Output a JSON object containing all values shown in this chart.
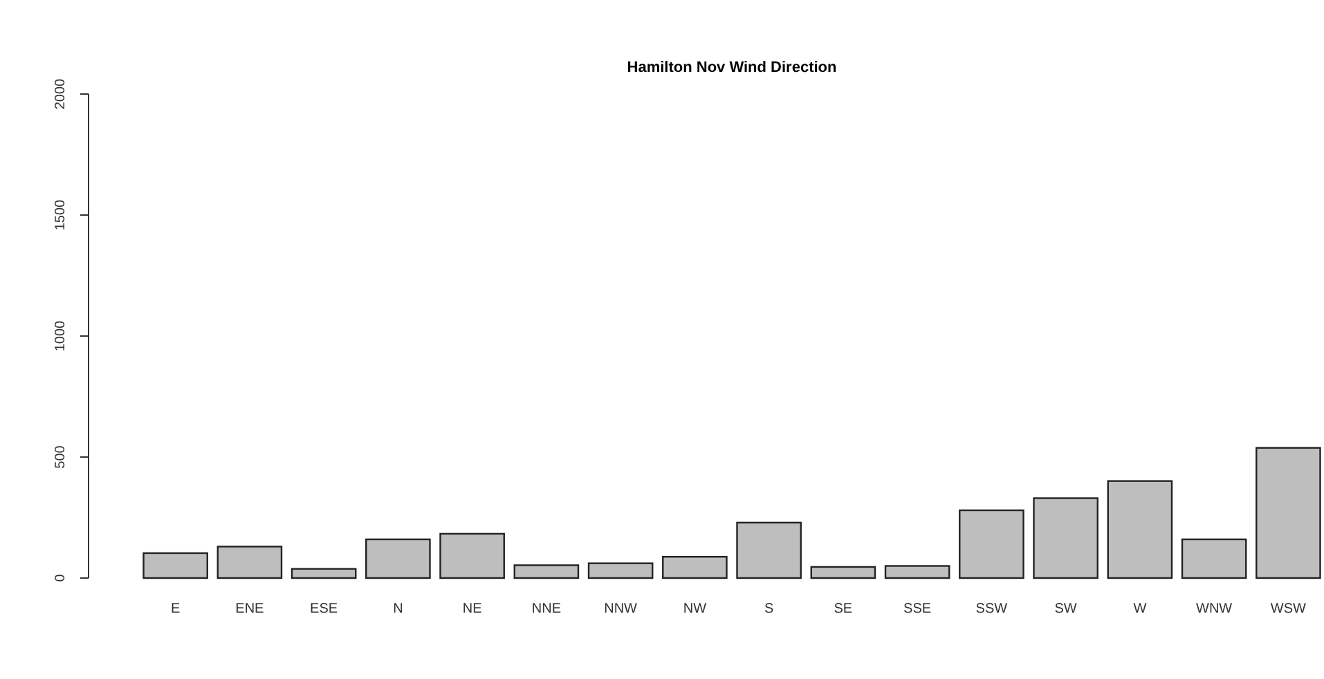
{
  "chart_data": {
    "type": "bar",
    "title": "Hamilton Nov Wind Direction",
    "categories": [
      "E",
      "ENE",
      "ESE",
      "N",
      "NE",
      "NNE",
      "NNW",
      "NW",
      "S",
      "SE",
      "SSE",
      "SSW",
      "SW",
      "W",
      "WNW",
      "WSW"
    ],
    "values": [
      103,
      130,
      38,
      160,
      183,
      53,
      61,
      88,
      229,
      46,
      50,
      280,
      330,
      401,
      160,
      538
    ],
    "color": "#bebebe",
    "ylim": [
      0,
      2000
    ],
    "yticks": [
      0,
      500,
      1000,
      1500,
      2000
    ],
    "grid": false
  }
}
